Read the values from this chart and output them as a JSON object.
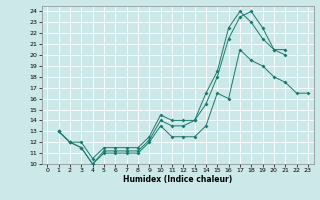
{
  "title": "",
  "xlabel": "Humidex (Indice chaleur)",
  "xlim": [
    -0.5,
    23.5
  ],
  "ylim": [
    10,
    24.5
  ],
  "xticks": [
    0,
    1,
    2,
    3,
    4,
    5,
    6,
    7,
    8,
    9,
    10,
    11,
    12,
    13,
    14,
    15,
    16,
    17,
    18,
    19,
    20,
    21,
    22,
    23
  ],
  "yticks": [
    10,
    11,
    12,
    13,
    14,
    15,
    16,
    17,
    18,
    19,
    20,
    21,
    22,
    23,
    24
  ],
  "bg_color": "#cce8e8",
  "grid_color": "#ffffff",
  "line_color": "#1a7a6e",
  "lines": [
    {
      "x": [
        1,
        2,
        3,
        4,
        5,
        6,
        7,
        8,
        9,
        10,
        11,
        12,
        13,
        14,
        15,
        16,
        17,
        18,
        19,
        20,
        21,
        22,
        23
      ],
      "y": [
        13.0,
        12.0,
        11.5,
        10.0,
        11.0,
        11.0,
        11.0,
        11.0,
        12.0,
        13.5,
        12.5,
        12.5,
        12.5,
        13.5,
        16.5,
        16.0,
        20.5,
        19.5,
        19.0,
        18.0,
        17.5,
        16.5,
        16.5
      ]
    },
    {
      "x": [
        1,
        2,
        3,
        4,
        5,
        6,
        7,
        8,
        9,
        10,
        11,
        12,
        13,
        14,
        15,
        16,
        17,
        18,
        19,
        20,
        21
      ],
      "y": [
        13.0,
        12.0,
        11.5,
        10.0,
        11.2,
        11.2,
        11.2,
        11.2,
        12.2,
        14.0,
        13.5,
        13.5,
        14.0,
        16.5,
        18.5,
        22.5,
        24.0,
        23.0,
        21.5,
        20.5,
        20.5
      ]
    },
    {
      "x": [
        1,
        2,
        3,
        4,
        5,
        6,
        7,
        8,
        9,
        10,
        11,
        12,
        13,
        14,
        15,
        16,
        17,
        18,
        19,
        20,
        21
      ],
      "y": [
        13.0,
        12.0,
        12.0,
        10.5,
        11.5,
        11.5,
        11.5,
        11.5,
        12.5,
        14.5,
        14.0,
        14.0,
        14.0,
        15.5,
        18.0,
        21.5,
        23.5,
        24.0,
        22.5,
        20.5,
        20.0
      ]
    }
  ]
}
